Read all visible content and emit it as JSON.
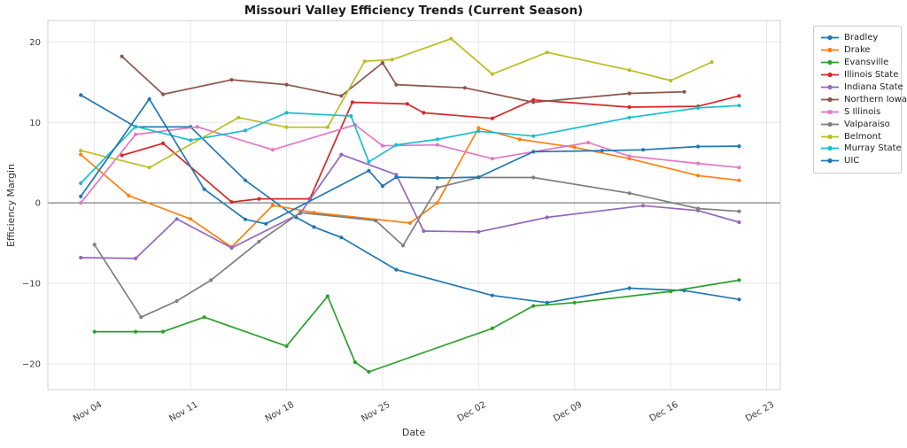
{
  "title": "Missouri Valley Efficiency Trends (Current Season)",
  "chart_data": {
    "type": "line",
    "title": "Missouri Valley Efficiency Trends (Current Season)",
    "xlabel": "Date",
    "ylabel": "Efficiency Margin",
    "x_unit": "days since Nov 04",
    "xlim": [
      -3.4,
      50
    ],
    "ylim": [
      -23.2,
      22.65
    ],
    "grid": true,
    "zero_line": true,
    "legend_position": "outside-right",
    "xticks": {
      "days": [
        0,
        7,
        14,
        21,
        28,
        35,
        42,
        49
      ],
      "labels": [
        "Nov 04",
        "Nov 11",
        "Nov 18",
        "Nov 25",
        "Dec 02",
        "Dec 09",
        "Dec 16",
        "Dec 23"
      ]
    },
    "yticks": [
      -20,
      -10,
      0,
      10,
      20
    ],
    "colors": {
      "grid": "#e6e6e6",
      "zero_line": "#808080",
      "plot_border": "#cfcfcf",
      "title_text": "#1a1a1a",
      "tick_text": "#3a3a3a"
    },
    "series": [
      {
        "name": "Bradley",
        "color": "#1f77b4",
        "points": [
          [
            -1,
            13.4
          ],
          [
            3,
            9.45
          ],
          [
            7,
            9.45
          ],
          [
            11,
            2.8
          ],
          [
            14.7,
            -1.8
          ],
          [
            16,
            -3.0
          ],
          [
            18,
            -4.3
          ],
          [
            22,
            -8.3
          ],
          [
            29,
            -11.5
          ],
          [
            33,
            -12.4
          ],
          [
            39,
            -10.6
          ],
          [
            43,
            -10.9
          ],
          [
            47,
            -12.0
          ]
        ]
      },
      {
        "name": "Drake",
        "color": "#ff7f0e",
        "points": [
          [
            -1,
            6.0
          ],
          [
            2.5,
            0.9
          ],
          [
            7,
            -2.0
          ],
          [
            10,
            -5.5
          ],
          [
            13,
            -0.3
          ],
          [
            16,
            -1.2
          ],
          [
            23,
            -2.5
          ],
          [
            25,
            0.0
          ],
          [
            28,
            9.3
          ],
          [
            31,
            7.9
          ],
          [
            35,
            6.9
          ],
          [
            39,
            5.5
          ],
          [
            44,
            3.4
          ],
          [
            47,
            2.8
          ]
        ]
      },
      {
        "name": "Evansville",
        "color": "#2ca02c",
        "points": [
          [
            0,
            -16.0
          ],
          [
            3,
            -16.0
          ],
          [
            5,
            -16.0
          ],
          [
            8,
            -14.2
          ],
          [
            14,
            -17.8
          ],
          [
            17,
            -11.6
          ],
          [
            19,
            -19.8
          ],
          [
            20,
            -21.0
          ],
          [
            29,
            -15.6
          ],
          [
            32,
            -12.8
          ],
          [
            35,
            -12.4
          ],
          [
            42,
            -11.0
          ],
          [
            47,
            -9.6
          ]
        ]
      },
      {
        "name": "Illinois State",
        "color": "#d62728",
        "points": [
          [
            2,
            5.9
          ],
          [
            5,
            7.4
          ],
          [
            10,
            0.1
          ],
          [
            12,
            0.5
          ],
          [
            15.7,
            0.5
          ],
          [
            18.8,
            12.5
          ],
          [
            22.8,
            12.3
          ],
          [
            24,
            11.2
          ],
          [
            29,
            10.5
          ],
          [
            32,
            12.8
          ],
          [
            39,
            11.9
          ],
          [
            44,
            12.0
          ],
          [
            47,
            13.3
          ]
        ]
      },
      {
        "name": "Indiana State",
        "color": "#9467bd",
        "points": [
          [
            -1,
            -6.8
          ],
          [
            3,
            -6.9
          ],
          [
            6,
            -2.0
          ],
          [
            10,
            -5.6
          ],
          [
            15,
            -1.3
          ],
          [
            18,
            6.0
          ],
          [
            22,
            3.5
          ],
          [
            24,
            -3.5
          ],
          [
            28,
            -3.6
          ],
          [
            33,
            -1.8
          ],
          [
            40,
            -0.35
          ],
          [
            44,
            -0.95
          ],
          [
            47,
            -2.4
          ]
        ]
      },
      {
        "name": "Northern Iowa",
        "color": "#8c564b",
        "points": [
          [
            2,
            18.2
          ],
          [
            5,
            13.5
          ],
          [
            10,
            15.3
          ],
          [
            14,
            14.7
          ],
          [
            18,
            13.3
          ],
          [
            21,
            17.4
          ],
          [
            22,
            14.7
          ],
          [
            27,
            14.3
          ],
          [
            32,
            12.5
          ],
          [
            39,
            13.6
          ],
          [
            43,
            13.8
          ]
        ]
      },
      {
        "name": "S Illinois",
        "color": "#e377c2",
        "points": [
          [
            -1,
            0.0
          ],
          [
            3,
            8.5
          ],
          [
            7.5,
            9.45
          ],
          [
            13,
            6.6
          ],
          [
            19,
            9.7
          ],
          [
            21,
            7.1
          ],
          [
            25,
            7.2
          ],
          [
            29,
            5.5
          ],
          [
            36,
            7.5
          ],
          [
            39,
            5.8
          ],
          [
            44,
            4.9
          ],
          [
            47,
            4.4
          ]
        ]
      },
      {
        "name": "Valparaiso",
        "color": "#7f7f7f",
        "points": [
          [
            0,
            -5.2
          ],
          [
            3.4,
            -14.2
          ],
          [
            6,
            -12.2
          ],
          [
            8.5,
            -9.6
          ],
          [
            12,
            -4.8
          ],
          [
            15,
            -1.2
          ],
          [
            20.5,
            -2.2
          ],
          [
            22.5,
            -5.3
          ],
          [
            25,
            1.9
          ],
          [
            28,
            3.15
          ],
          [
            32,
            3.15
          ],
          [
            39,
            1.2
          ],
          [
            44,
            -0.7
          ],
          [
            47,
            -1.05
          ]
        ]
      },
      {
        "name": "Belmont",
        "color": "#bcbd22",
        "points": [
          [
            -1,
            6.5
          ],
          [
            4,
            4.4
          ],
          [
            10.5,
            10.6
          ],
          [
            14,
            9.4
          ],
          [
            17,
            9.4
          ],
          [
            19.7,
            17.6
          ],
          [
            21.7,
            17.8
          ],
          [
            26,
            20.4
          ],
          [
            29,
            16.0
          ],
          [
            33,
            18.7
          ],
          [
            39,
            16.5
          ],
          [
            42,
            15.2
          ],
          [
            45,
            17.5
          ]
        ]
      },
      {
        "name": "Murray State",
        "color": "#17becf",
        "points": [
          [
            -1,
            2.45
          ],
          [
            3,
            9.5
          ],
          [
            7,
            7.8
          ],
          [
            11,
            9.0
          ],
          [
            14,
            11.2
          ],
          [
            18.7,
            10.8
          ],
          [
            20,
            5.1
          ],
          [
            22,
            7.2
          ],
          [
            25,
            7.9
          ],
          [
            28,
            8.9
          ],
          [
            32,
            8.3
          ],
          [
            39,
            10.6
          ],
          [
            44,
            11.8
          ],
          [
            47,
            12.1
          ]
        ]
      },
      {
        "name": "UIC",
        "color": "#1f77b4",
        "points": [
          [
            -1,
            0.8
          ],
          [
            4,
            12.9
          ],
          [
            8,
            1.7
          ],
          [
            11,
            -2.05
          ],
          [
            12.5,
            -2.6
          ],
          [
            20,
            4.0
          ],
          [
            21,
            2.1
          ],
          [
            22,
            3.2
          ],
          [
            25,
            3.1
          ],
          [
            28,
            3.2
          ],
          [
            32,
            6.35
          ],
          [
            37,
            6.5
          ],
          [
            40,
            6.6
          ],
          [
            44,
            7.0
          ],
          [
            47,
            7.05
          ]
        ]
      }
    ]
  }
}
